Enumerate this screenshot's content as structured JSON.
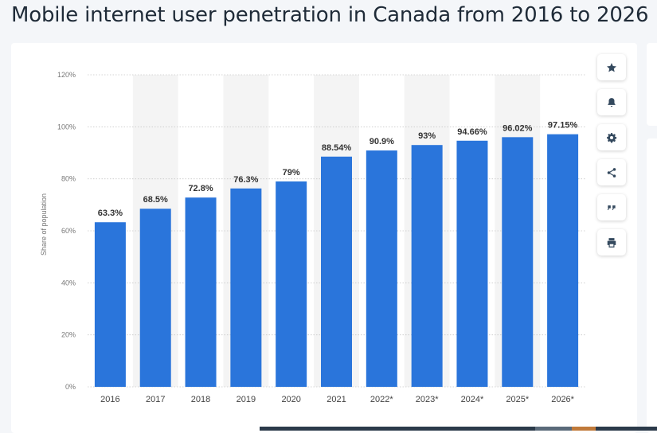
{
  "page": {
    "title": "Mobile internet user penetration in Canada from 2016 to 2026"
  },
  "toolbar": {
    "buttons": [
      {
        "name": "favorite-button",
        "icon": "star-icon"
      },
      {
        "name": "notification-button",
        "icon": "bell-icon"
      },
      {
        "name": "settings-button",
        "icon": "gear-icon"
      },
      {
        "name": "share-button",
        "icon": "share-icon"
      },
      {
        "name": "cite-button",
        "icon": "quote-icon"
      },
      {
        "name": "print-button",
        "icon": "printer-icon"
      }
    ]
  },
  "colors": {
    "bar": "#2a75db",
    "band": "#f4f4f4",
    "grid": "#c8c8c8",
    "text": "#333333"
  },
  "chart_data": {
    "type": "bar",
    "title": "",
    "xlabel": "",
    "ylabel": "Share of population",
    "categories": [
      "2016",
      "2017",
      "2018",
      "2019",
      "2020",
      "2021",
      "2022*",
      "2023*",
      "2024*",
      "2025*",
      "2026*"
    ],
    "values": [
      63.3,
      68.5,
      72.8,
      76.3,
      79,
      88.54,
      90.9,
      93,
      94.66,
      96.02,
      97.15
    ],
    "value_labels": [
      "63.3%",
      "68.5%",
      "72.8%",
      "76.3%",
      "79%",
      "88.54%",
      "90.9%",
      "93%",
      "94.66%",
      "96.02%",
      "97.15%"
    ],
    "ylim": [
      0,
      120
    ],
    "yticks": [
      0,
      20,
      40,
      60,
      80,
      100,
      120
    ],
    "ytick_labels": [
      "0%",
      "20%",
      "40%",
      "60%",
      "80%",
      "100%",
      "120%"
    ],
    "grid": true,
    "legend": "none"
  }
}
